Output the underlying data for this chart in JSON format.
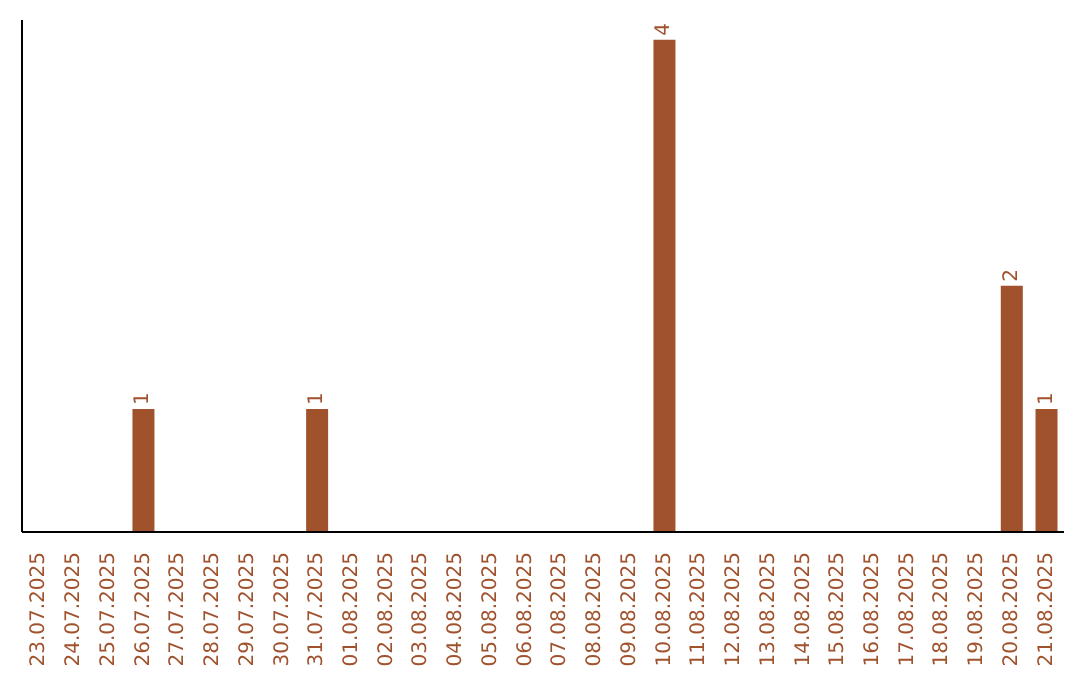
{
  "chart_data": {
    "type": "bar",
    "categories": [
      "23.07.2025",
      "24.07.2025",
      "25.07.2025",
      "26.07.2025",
      "27.07.2025",
      "28.07.2025",
      "29.07.2025",
      "30.07.2025",
      "31.07.2025",
      "01.08.2025",
      "02.08.2025",
      "03.08.2025",
      "04.08.2025",
      "05.08.2025",
      "06.08.2025",
      "07.08.2025",
      "08.08.2025",
      "09.08.2025",
      "10.08.2025",
      "11.08.2025",
      "12.08.2025",
      "13.08.2025",
      "14.08.2025",
      "15.08.2025",
      "16.08.2025",
      "17.08.2025",
      "18.08.2025",
      "19.08.2025",
      "20.08.2025",
      "21.08.2025"
    ],
    "values": [
      0,
      0,
      0,
      1,
      0,
      0,
      0,
      0,
      1,
      0,
      0,
      0,
      0,
      0,
      0,
      0,
      0,
      0,
      4,
      0,
      0,
      0,
      0,
      0,
      0,
      0,
      0,
      0,
      2,
      1
    ],
    "value_labels": [
      null,
      null,
      null,
      "1",
      null,
      null,
      null,
      null,
      "1",
      null,
      null,
      null,
      null,
      null,
      null,
      null,
      null,
      null,
      "4",
      null,
      null,
      null,
      null,
      null,
      null,
      null,
      null,
      null,
      "2",
      "1"
    ],
    "color": "#a0522d",
    "grid": false,
    "legend": false
  }
}
